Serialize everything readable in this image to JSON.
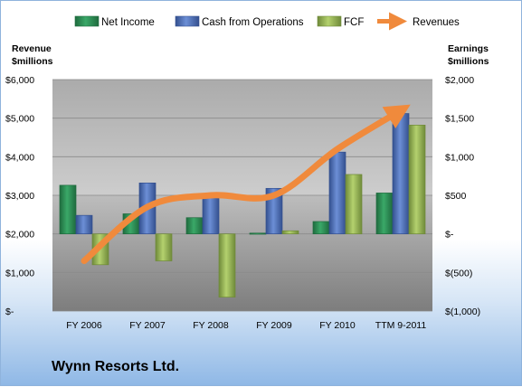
{
  "company_name": "Wynn Resorts Ltd.",
  "chart_data": {
    "type": "bar",
    "categories": [
      "FY 2006",
      "FY 2007",
      "FY 2008",
      "FY 2009",
      "FY 2010",
      "TTM 9-2011"
    ],
    "left_axis": {
      "label_line1": "Revenue",
      "label_line2": "$millions",
      "ylim": [
        0,
        6000
      ],
      "ticks": [
        "$-",
        "$1,000",
        "$2,000",
        "$3,000",
        "$4,000",
        "$5,000",
        "$6,000"
      ]
    },
    "right_axis": {
      "label_line1": "Earnings",
      "label_line2": "$millions",
      "ylim": [
        -1000,
        2000
      ],
      "ticks": [
        "$(1,000)",
        "$(500)",
        "$-",
        "$500",
        "$1,000",
        "$1,500",
        "$2,000"
      ]
    },
    "series": [
      {
        "name": "Net Income",
        "axis": "right",
        "color": "#2e8b57",
        "values": [
          630,
          260,
          210,
          10,
          160,
          530
        ]
      },
      {
        "name": "Cash from Operations",
        "axis": "right",
        "color": "#4f71be",
        "values": [
          240,
          660,
          510,
          590,
          1060,
          1560
        ]
      },
      {
        "name": "FCF",
        "axis": "right",
        "color": "#9bbb59",
        "values": [
          -400,
          -350,
          -820,
          40,
          770,
          1410
        ]
      },
      {
        "name": "Revenues",
        "axis": "left",
        "type": "line",
        "color": "#f08a3c",
        "values": [
          1300,
          2700,
          3000,
          3000,
          4200,
          5200
        ]
      }
    ],
    "legend_position": "top",
    "grid": true
  }
}
